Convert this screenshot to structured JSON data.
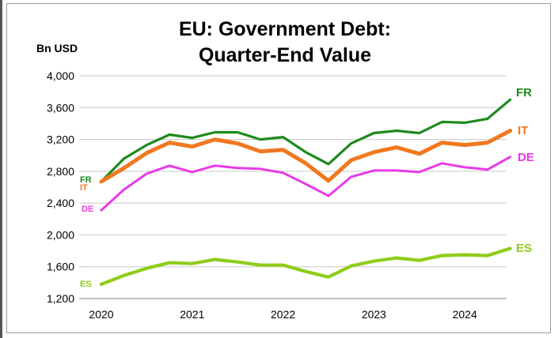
{
  "chart_data": {
    "type": "line",
    "title_line1": "EU: Government Debt:",
    "title_line2": "Quarter-End Value",
    "ylabel": "Bn USD",
    "ylim": [
      1200,
      4000
    ],
    "yticks": [
      "1,200",
      "1,600",
      "2,000",
      "2,400",
      "2,800",
      "3,200",
      "3,600",
      "4,000"
    ],
    "ytick_values": [
      1200,
      1600,
      2000,
      2400,
      2800,
      3200,
      3600,
      4000
    ],
    "xticks": [
      "2020",
      "2021",
      "2022",
      "2023",
      "2024"
    ],
    "x": [
      "2020Q1",
      "2020Q2",
      "2020Q3",
      "2020Q4",
      "2021Q1",
      "2021Q2",
      "2021Q3",
      "2021Q4",
      "2022Q1",
      "2022Q2",
      "2022Q3",
      "2022Q4",
      "2023Q1",
      "2023Q2",
      "2023Q3",
      "2023Q4",
      "2024Q1",
      "2024Q2",
      "2024Q3"
    ],
    "grid": "horizontal",
    "series": [
      {
        "name": "FR",
        "color": "#1e8a1e",
        "values": [
          2670,
          2960,
          3130,
          3260,
          3220,
          3290,
          3290,
          3200,
          3230,
          3040,
          2890,
          3150,
          3280,
          3310,
          3280,
          3420,
          3410,
          3460,
          3700
        ]
      },
      {
        "name": "IT",
        "color": "#f07820",
        "values": [
          2670,
          2840,
          3030,
          3160,
          3110,
          3200,
          3150,
          3050,
          3070,
          2900,
          2680,
          2940,
          3040,
          3100,
          3020,
          3160,
          3130,
          3160,
          3310
        ]
      },
      {
        "name": "DE",
        "color": "#e83ae8",
        "values": [
          2310,
          2570,
          2770,
          2870,
          2790,
          2870,
          2840,
          2830,
          2780,
          2640,
          2490,
          2730,
          2810,
          2810,
          2790,
          2900,
          2850,
          2820,
          2980
        ]
      },
      {
        "name": "ES",
        "color": "#8fcc1a",
        "values": [
          1380,
          1490,
          1580,
          1650,
          1640,
          1690,
          1660,
          1620,
          1620,
          1540,
          1470,
          1610,
          1670,
          1710,
          1680,
          1740,
          1750,
          1740,
          1830
        ]
      }
    ]
  }
}
